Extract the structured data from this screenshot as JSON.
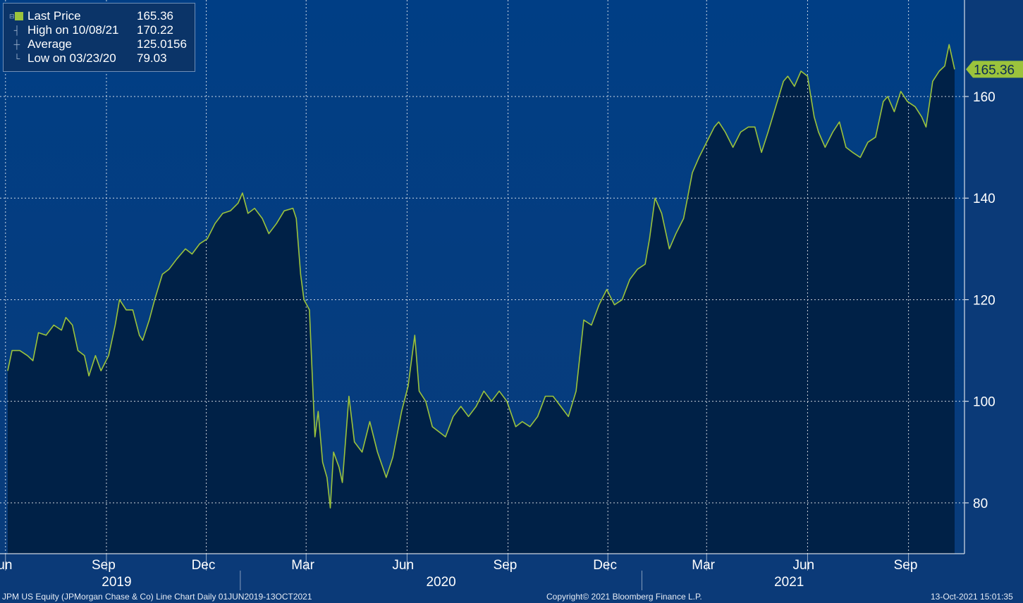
{
  "legend": {
    "items": [
      {
        "icon": "square-swatch-icon",
        "label": "Last Price",
        "value": "165.36"
      },
      {
        "icon": "high-marker-icon",
        "label": "High on 10/08/21",
        "value": "170.22"
      },
      {
        "icon": "average-marker-icon",
        "label": "Average",
        "value": "125.0156"
      },
      {
        "icon": "low-marker-icon",
        "label": "Low on 03/23/20",
        "value": "79.03"
      }
    ]
  },
  "chart_data": {
    "type": "area",
    "series": [
      {
        "name": "Last Price",
        "color": "#9bc33c",
        "last_label": "165.36",
        "points": [
          [
            "2019-06-03",
            106
          ],
          [
            "2019-06-07",
            110
          ],
          [
            "2019-06-14",
            110
          ],
          [
            "2019-06-21",
            109
          ],
          [
            "2019-06-26",
            108
          ],
          [
            "2019-07-01",
            113.5
          ],
          [
            "2019-07-08",
            113
          ],
          [
            "2019-07-15",
            115
          ],
          [
            "2019-07-22",
            114
          ],
          [
            "2019-07-26",
            116.5
          ],
          [
            "2019-08-01",
            115
          ],
          [
            "2019-08-06",
            110
          ],
          [
            "2019-08-12",
            109
          ],
          [
            "2019-08-16",
            105
          ],
          [
            "2019-08-22",
            109
          ],
          [
            "2019-08-27",
            106
          ],
          [
            "2019-09-03",
            109
          ],
          [
            "2019-09-09",
            115
          ],
          [
            "2019-09-13",
            120
          ],
          [
            "2019-09-19",
            118
          ],
          [
            "2019-09-25",
            118
          ],
          [
            "2019-10-01",
            113
          ],
          [
            "2019-10-04",
            112
          ],
          [
            "2019-10-10",
            116
          ],
          [
            "2019-10-15",
            120
          ],
          [
            "2019-10-22",
            125
          ],
          [
            "2019-10-28",
            126
          ],
          [
            "2019-11-04",
            128
          ],
          [
            "2019-11-12",
            130
          ],
          [
            "2019-11-18",
            129
          ],
          [
            "2019-11-25",
            131
          ],
          [
            "2019-12-02",
            132
          ],
          [
            "2019-12-09",
            135
          ],
          [
            "2019-12-16",
            137
          ],
          [
            "2019-12-23",
            137.5
          ],
          [
            "2019-12-30",
            139
          ],
          [
            "2020-01-03",
            141
          ],
          [
            "2020-01-08",
            137
          ],
          [
            "2020-01-14",
            138
          ],
          [
            "2020-01-21",
            136
          ],
          [
            "2020-01-27",
            133
          ],
          [
            "2020-02-03",
            135
          ],
          [
            "2020-02-10",
            137.5
          ],
          [
            "2020-02-18",
            138
          ],
          [
            "2020-02-21",
            136
          ],
          [
            "2020-02-25",
            125
          ],
          [
            "2020-02-28",
            120
          ],
          [
            "2020-03-04",
            118
          ],
          [
            "2020-03-09",
            93
          ],
          [
            "2020-03-12",
            98
          ],
          [
            "2020-03-16",
            88
          ],
          [
            "2020-03-20",
            85
          ],
          [
            "2020-03-23",
            79
          ],
          [
            "2020-03-26",
            90
          ],
          [
            "2020-03-31",
            87
          ],
          [
            "2020-04-03",
            84
          ],
          [
            "2020-04-09",
            101
          ],
          [
            "2020-04-14",
            92
          ],
          [
            "2020-04-21",
            90
          ],
          [
            "2020-04-28",
            96
          ],
          [
            "2020-05-05",
            90
          ],
          [
            "2020-05-13",
            85
          ],
          [
            "2020-05-19",
            89
          ],
          [
            "2020-05-27",
            98
          ],
          [
            "2020-06-02",
            103
          ],
          [
            "2020-06-08",
            113
          ],
          [
            "2020-06-12",
            102
          ],
          [
            "2020-06-18",
            100
          ],
          [
            "2020-06-24",
            95
          ],
          [
            "2020-06-30",
            94
          ],
          [
            "2020-07-06",
            93
          ],
          [
            "2020-07-13",
            97
          ],
          [
            "2020-07-20",
            99
          ],
          [
            "2020-07-27",
            97
          ],
          [
            "2020-08-03",
            99
          ],
          [
            "2020-08-10",
            102
          ],
          [
            "2020-08-17",
            100
          ],
          [
            "2020-08-24",
            102
          ],
          [
            "2020-08-31",
            100
          ],
          [
            "2020-09-08",
            95
          ],
          [
            "2020-09-14",
            96
          ],
          [
            "2020-09-21",
            95
          ],
          [
            "2020-09-28",
            97
          ],
          [
            "2020-10-05",
            101
          ],
          [
            "2020-10-12",
            101
          ],
          [
            "2020-10-19",
            99
          ],
          [
            "2020-10-26",
            97
          ],
          [
            "2020-11-02",
            102
          ],
          [
            "2020-11-09",
            116
          ],
          [
            "2020-11-16",
            115
          ],
          [
            "2020-11-23",
            119
          ],
          [
            "2020-11-30",
            122
          ],
          [
            "2020-12-07",
            119
          ],
          [
            "2020-12-14",
            120
          ],
          [
            "2020-12-21",
            124
          ],
          [
            "2020-12-28",
            126
          ],
          [
            "2021-01-04",
            127
          ],
          [
            "2021-01-08",
            132
          ],
          [
            "2021-01-13",
            140
          ],
          [
            "2021-01-19",
            137
          ],
          [
            "2021-01-26",
            130
          ],
          [
            "2021-02-01",
            133
          ],
          [
            "2021-02-08",
            136
          ],
          [
            "2021-02-16",
            145
          ],
          [
            "2021-02-22",
            148
          ],
          [
            "2021-03-01",
            151
          ],
          [
            "2021-03-08",
            154
          ],
          [
            "2021-03-12",
            155
          ],
          [
            "2021-03-18",
            153
          ],
          [
            "2021-03-25",
            150
          ],
          [
            "2021-04-01",
            153
          ],
          [
            "2021-04-08",
            154
          ],
          [
            "2021-04-14",
            154
          ],
          [
            "2021-04-20",
            149
          ],
          [
            "2021-04-26",
            153
          ],
          [
            "2021-05-03",
            158
          ],
          [
            "2021-05-10",
            163
          ],
          [
            "2021-05-14",
            164
          ],
          [
            "2021-05-20",
            162
          ],
          [
            "2021-05-26",
            165
          ],
          [
            "2021-06-01",
            164
          ],
          [
            "2021-06-07",
            156
          ],
          [
            "2021-06-11",
            153
          ],
          [
            "2021-06-17",
            150
          ],
          [
            "2021-06-24",
            153
          ],
          [
            "2021-06-30",
            155
          ],
          [
            "2021-07-06",
            150
          ],
          [
            "2021-07-12",
            149
          ],
          [
            "2021-07-19",
            148
          ],
          [
            "2021-07-26",
            151
          ],
          [
            "2021-08-02",
            152
          ],
          [
            "2021-08-09",
            159
          ],
          [
            "2021-08-13",
            160
          ],
          [
            "2021-08-19",
            157
          ],
          [
            "2021-08-25",
            161
          ],
          [
            "2021-08-31",
            159
          ],
          [
            "2021-09-07",
            158
          ],
          [
            "2021-09-13",
            156
          ],
          [
            "2021-09-17",
            154
          ],
          [
            "2021-09-23",
            163
          ],
          [
            "2021-09-29",
            165
          ],
          [
            "2021-10-04",
            166
          ],
          [
            "2021-10-08",
            170.22
          ],
          [
            "2021-10-13",
            165.36
          ]
        ]
      }
    ],
    "x_range": [
      "2019-05-27",
      "2021-10-22"
    ],
    "ylim": [
      70,
      179
    ],
    "y_ticks": [
      80,
      100,
      120,
      140,
      160
    ],
    "x_ticks": [
      {
        "date": "2019-06-01",
        "label": "Jun"
      },
      {
        "date": "2019-09-01",
        "label": "Sep"
      },
      {
        "date": "2019-12-01",
        "label": "Dec"
      },
      {
        "date": "2020-03-01",
        "label": "Mar"
      },
      {
        "date": "2020-06-01",
        "label": "Jun"
      },
      {
        "date": "2020-09-01",
        "label": "Sep"
      },
      {
        "date": "2020-12-01",
        "label": "Dec"
      },
      {
        "date": "2021-03-01",
        "label": "Mar"
      },
      {
        "date": "2021-06-01",
        "label": "Jun"
      },
      {
        "date": "2021-09-01",
        "label": "Sep"
      }
    ],
    "year_labels": [
      "2019",
      "2020",
      "2021"
    ],
    "grid": true,
    "legend_placement": "top-left",
    "colors": {
      "background": "#0b3a78",
      "fill": "#002147",
      "line": "#9bc33c"
    }
  },
  "footer": {
    "left": "JPM US Equity (JPMorgan Chase & Co) Line Chart  Daily 01JUN2019-13OCT2021",
    "center": "Copyright© 2021 Bloomberg Finance L.P.",
    "right": "13-Oct-2021 15:01:35"
  }
}
